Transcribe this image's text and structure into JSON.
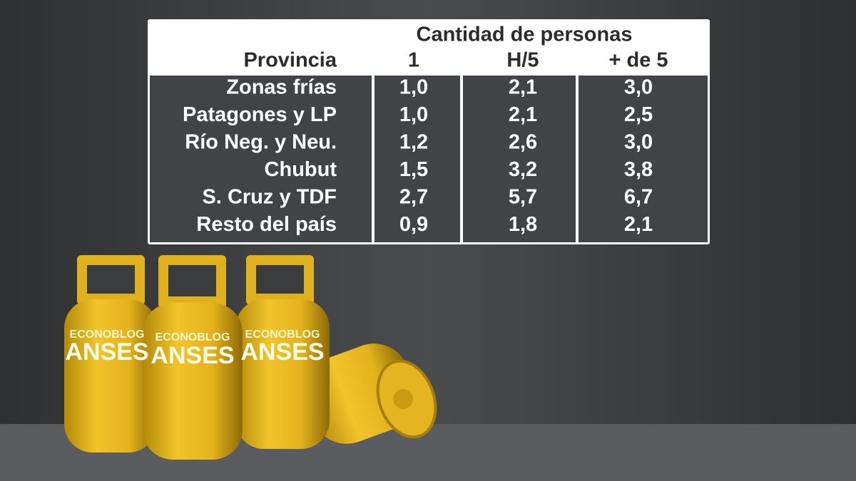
{
  "table": {
    "group_header": "Cantidad de personas",
    "columns": [
      "Provincia",
      "1",
      "H/5",
      "+ de 5"
    ],
    "rows": [
      [
        "Zonas frías",
        "1,0",
        "2,1",
        "3,0"
      ],
      [
        "Patagones y LP",
        "1,0",
        "2,1",
        "2,5"
      ],
      [
        "Río Neg. y Neu.",
        "1,2",
        "2,6",
        "3,0"
      ],
      [
        "Chubut",
        "1,5",
        "3,2",
        "3,8"
      ],
      [
        "S. Cruz y TDF",
        "2,7",
        "5,7",
        "6,7"
      ],
      [
        "Resto del país",
        "0,9",
        "1,8",
        "2,1"
      ]
    ]
  },
  "cylinders": [
    {
      "brand": "ECONOBLOG",
      "name": "ANSES"
    },
    {
      "brand": "ECONOBLOG",
      "name": "ANSES"
    },
    {
      "brand": "ECONOBLOG",
      "name": "ANSES"
    }
  ]
}
